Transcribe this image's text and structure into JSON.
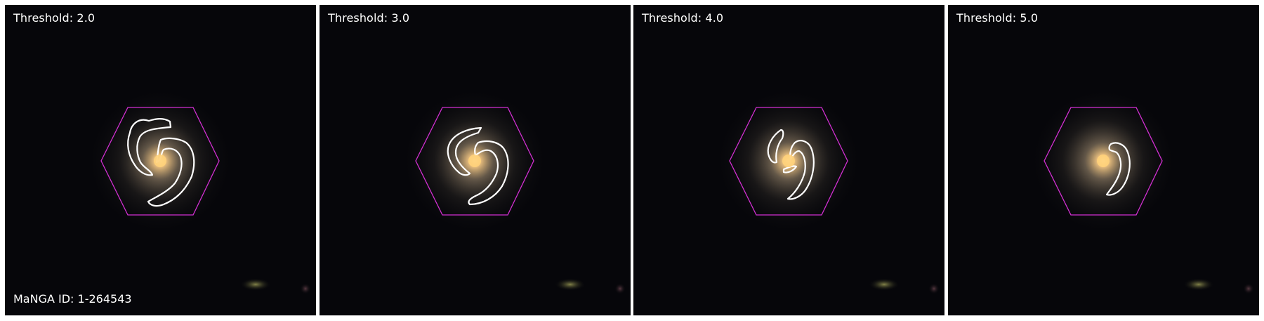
{
  "figure": {
    "panels": [
      {
        "title": "Threshold: 2.0"
      },
      {
        "title": "Threshold: 3.0"
      },
      {
        "title": "Threshold: 4.0"
      },
      {
        "title": "Threshold: 5.0"
      }
    ],
    "manga_id": "MaNGA ID: 1-264543"
  },
  "colors": {
    "hexagon": "#d22fd2",
    "contour": "#ffffff",
    "background": "#06060a",
    "core": "#ffd27a"
  }
}
